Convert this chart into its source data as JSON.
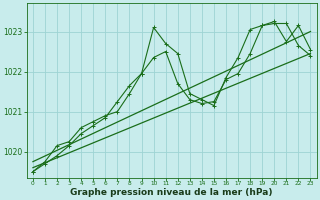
{
  "line1": {
    "x": [
      0,
      1,
      2,
      3,
      4,
      5,
      6,
      7,
      8,
      9,
      10,
      11,
      12,
      13,
      14,
      15,
      16,
      17,
      18,
      19,
      20,
      21,
      22,
      23
    ],
    "y": [
      1019.5,
      1019.7,
      1019.9,
      1020.15,
      1020.45,
      1020.65,
      1020.85,
      1021.25,
      1021.65,
      1021.95,
      1023.1,
      1022.7,
      1022.45,
      1021.45,
      1021.3,
      1021.15,
      1021.85,
      1022.35,
      1023.05,
      1023.15,
      1023.25,
      1022.75,
      1023.15,
      1022.55
    ],
    "color": "#1a6e1a",
    "linewidth": 0.8,
    "marker": "+"
  },
  "line2": {
    "x": [
      0,
      1,
      2,
      3,
      4,
      5,
      6,
      7,
      8,
      9,
      10,
      11,
      12,
      13,
      14,
      15,
      16,
      17,
      18,
      19,
      20,
      21,
      22,
      23
    ],
    "y": [
      1019.5,
      1019.75,
      1020.15,
      1020.25,
      1020.6,
      1020.75,
      1020.9,
      1021.0,
      1021.45,
      1021.95,
      1022.35,
      1022.5,
      1021.7,
      1021.3,
      1021.2,
      1021.25,
      1021.8,
      1021.95,
      1022.45,
      1023.15,
      1023.2,
      1023.2,
      1022.65,
      1022.4
    ],
    "color": "#1a6e1a",
    "linewidth": 0.8,
    "marker": "+"
  },
  "line3_trend": {
    "x": [
      0,
      23
    ],
    "y": [
      1019.6,
      1022.45
    ],
    "color": "#1a6e1a",
    "linewidth": 0.9
  },
  "line4_trend": {
    "x": [
      0,
      23
    ],
    "y": [
      1019.75,
      1023.0
    ],
    "color": "#1a6e1a",
    "linewidth": 0.9
  },
  "bg_color": "#c8ecec",
  "grid_color": "#9dd4d4",
  "axis_color": "#1a6e1a",
  "text_color": "#1a3c1a",
  "xlabel": "Graphe pression niveau de la mer (hPa)",
  "xlabel_fontsize": 6.5,
  "ylim": [
    1019.35,
    1023.7
  ],
  "xlim": [
    -0.5,
    23.5
  ],
  "yticks": [
    1020,
    1021,
    1022,
    1023
  ],
  "ytick_fontsize": 5.5,
  "xtick_fontsize": 4.2,
  "xticks": [
    0,
    1,
    2,
    3,
    4,
    5,
    6,
    7,
    8,
    9,
    10,
    11,
    12,
    13,
    14,
    15,
    16,
    17,
    18,
    19,
    20,
    21,
    22,
    23
  ]
}
